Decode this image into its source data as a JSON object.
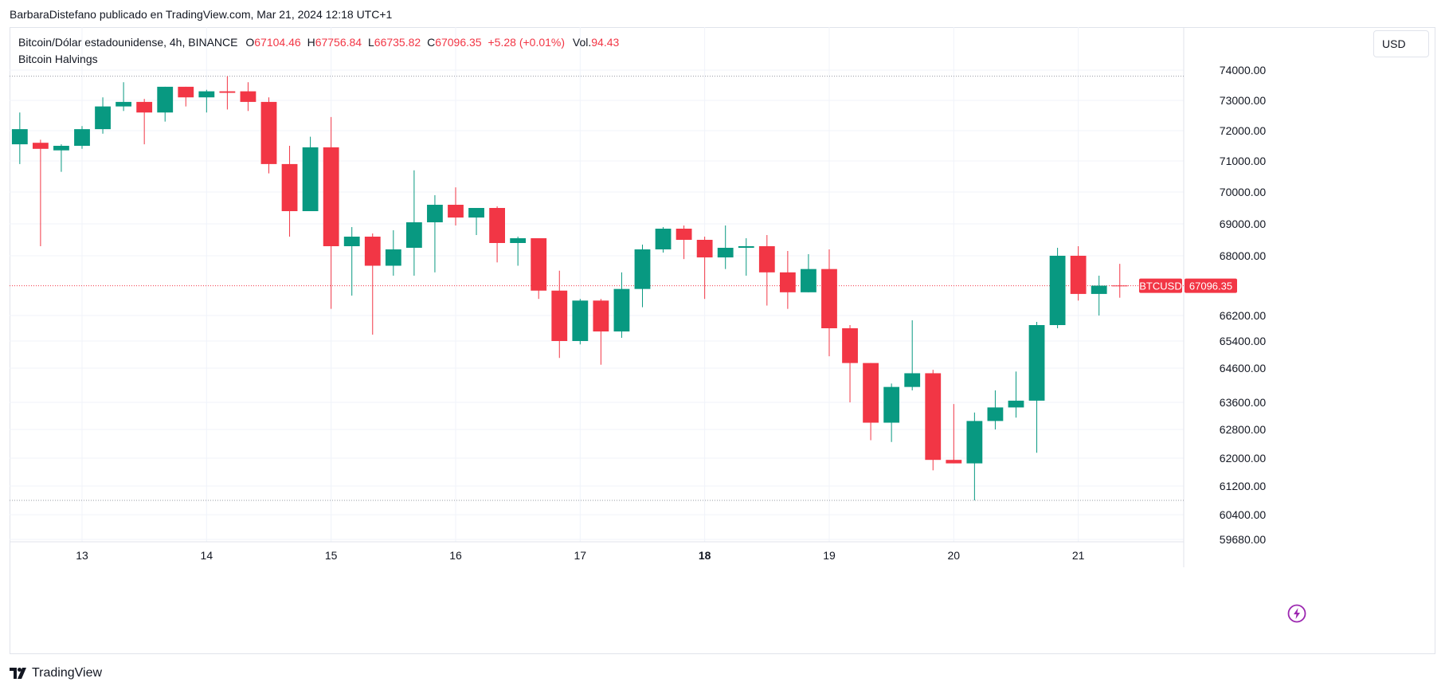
{
  "header": {
    "publisher_line": "BarbaraDistefano publicado en TradingView.com, Mar 21, 2024 12:18 UTC+1"
  },
  "legend": {
    "symbol": "Bitcoin/Dólar estadounidense, 4h, BINANCE",
    "o_label": "O",
    "o_value": "67104.46",
    "h_label": "H",
    "h_value": "67756.84",
    "l_label": "L",
    "l_value": "66735.82",
    "c_label": "C",
    "c_value": "67096.35",
    "change": "+5.28 (+0.01%)",
    "vol_label": "Vol.",
    "vol_value": "94.43",
    "indicator": "Bitcoin Halvings"
  },
  "currency_button": "USD",
  "branding": "TradingView",
  "colors": {
    "up": "#089981",
    "down": "#f23645",
    "grid": "#f0f3fa",
    "price_line": "#f23645",
    "dotted_line": "#9598a1",
    "flash_icon": "#9c27b0"
  },
  "icons": {
    "flash": "lightning-icon",
    "brand": "tradingview-logo-icon"
  },
  "chart_data": {
    "type": "candlestick",
    "symbol_tag": "BTCUSD",
    "last_price": 67096.35,
    "last_price_label": "67096.35",
    "y_ticks": [
      "74000.00",
      "73000.00",
      "72000.00",
      "71000.00",
      "70000.00",
      "69000.00",
      "68000.00",
      "66200.00",
      "65400.00",
      "64600.00",
      "63600.00",
      "62800.00",
      "62000.00",
      "61200.00",
      "60400.00",
      "59680.00"
    ],
    "y_tick_values": [
      74000,
      73000,
      72000,
      71000,
      70000,
      69000,
      68000,
      66200,
      65400,
      64600,
      63600,
      62800,
      62000,
      61200,
      60400,
      59680
    ],
    "x_ticks": [
      {
        "label": "13",
        "bold": false
      },
      {
        "label": "14",
        "bold": false
      },
      {
        "label": "15",
        "bold": false
      },
      {
        "label": "16",
        "bold": false
      },
      {
        "label": "17",
        "bold": false
      },
      {
        "label": "18",
        "bold": true
      },
      {
        "label": "19",
        "bold": false
      },
      {
        "label": "20",
        "bold": false
      },
      {
        "label": "21",
        "bold": false
      }
    ],
    "candles_per_day": 6,
    "first_candle_offset": -3,
    "high_marker": 73800,
    "low_marker": 60800,
    "candles": [
      {
        "o": 71550,
        "h": 72600,
        "l": 70900,
        "c": 72050
      },
      {
        "o": 71600,
        "h": 71700,
        "l": 68300,
        "c": 71400
      },
      {
        "o": 71350,
        "h": 71550,
        "l": 70650,
        "c": 71500
      },
      {
        "o": 71500,
        "h": 72150,
        "l": 71400,
        "c": 72050
      },
      {
        "o": 72050,
        "h": 73100,
        "l": 71900,
        "c": 72800
      },
      {
        "o": 72800,
        "h": 73600,
        "l": 72650,
        "c": 72950
      },
      {
        "o": 72950,
        "h": 73050,
        "l": 71550,
        "c": 72600
      },
      {
        "o": 72600,
        "h": 73450,
        "l": 72300,
        "c": 73450
      },
      {
        "o": 73450,
        "h": 73450,
        "l": 72800,
        "c": 73100
      },
      {
        "o": 73100,
        "h": 73350,
        "l": 72600,
        "c": 73300
      },
      {
        "o": 73300,
        "h": 73800,
        "l": 72700,
        "c": 73250
      },
      {
        "o": 73300,
        "h": 73600,
        "l": 72650,
        "c": 72950
      },
      {
        "o": 72950,
        "h": 73100,
        "l": 70600,
        "c": 70900
      },
      {
        "o": 70900,
        "h": 71500,
        "l": 68600,
        "c": 69400
      },
      {
        "o": 69400,
        "h": 71800,
        "l": 69400,
        "c": 71450
      },
      {
        "o": 71450,
        "h": 72450,
        "l": 66400,
        "c": 68300
      },
      {
        "o": 68300,
        "h": 68900,
        "l": 66800,
        "c": 68600
      },
      {
        "o": 68600,
        "h": 68700,
        "l": 65600,
        "c": 67700
      },
      {
        "o": 67700,
        "h": 68800,
        "l": 67400,
        "c": 68200
      },
      {
        "o": 68250,
        "h": 70700,
        "l": 67400,
        "c": 69050
      },
      {
        "o": 69050,
        "h": 69900,
        "l": 67500,
        "c": 69600
      },
      {
        "o": 69600,
        "h": 70150,
        "l": 68950,
        "c": 69200
      },
      {
        "o": 69200,
        "h": 69500,
        "l": 68650,
        "c": 69500
      },
      {
        "o": 69500,
        "h": 69550,
        "l": 67800,
        "c": 68400
      },
      {
        "o": 68400,
        "h": 68600,
        "l": 67700,
        "c": 68550
      },
      {
        "o": 68550,
        "h": 68550,
        "l": 66700,
        "c": 66950
      },
      {
        "o": 66950,
        "h": 67550,
        "l": 64900,
        "c": 65400
      },
      {
        "o": 65400,
        "h": 66700,
        "l": 65300,
        "c": 66650
      },
      {
        "o": 66650,
        "h": 66700,
        "l": 64700,
        "c": 65700
      },
      {
        "o": 65700,
        "h": 67500,
        "l": 65500,
        "c": 67000
      },
      {
        "o": 67000,
        "h": 68350,
        "l": 66450,
        "c": 68200
      },
      {
        "o": 68200,
        "h": 68900,
        "l": 68100,
        "c": 68850
      },
      {
        "o": 68850,
        "h": 68950,
        "l": 67900,
        "c": 68500
      },
      {
        "o": 68500,
        "h": 68600,
        "l": 66700,
        "c": 67950
      },
      {
        "o": 67950,
        "h": 68950,
        "l": 67600,
        "c": 68250
      },
      {
        "o": 68250,
        "h": 68550,
        "l": 67400,
        "c": 68300
      },
      {
        "o": 68300,
        "h": 68650,
        "l": 66500,
        "c": 67500
      },
      {
        "o": 67500,
        "h": 68150,
        "l": 66400,
        "c": 66900
      },
      {
        "o": 66900,
        "h": 68050,
        "l": 66900,
        "c": 67600
      },
      {
        "o": 67600,
        "h": 68200,
        "l": 64950,
        "c": 65800
      },
      {
        "o": 65800,
        "h": 65900,
        "l": 63600,
        "c": 64750
      },
      {
        "o": 64750,
        "h": 64750,
        "l": 62500,
        "c": 63000
      },
      {
        "o": 63000,
        "h": 64150,
        "l": 62450,
        "c": 64050
      },
      {
        "o": 64050,
        "h": 66050,
        "l": 63950,
        "c": 64450
      },
      {
        "o": 64450,
        "h": 64550,
        "l": 61650,
        "c": 61950
      },
      {
        "o": 61950,
        "h": 63550,
        "l": 61850,
        "c": 61850
      },
      {
        "o": 61850,
        "h": 63300,
        "l": 60800,
        "c": 63050
      },
      {
        "o": 63050,
        "h": 63950,
        "l": 62800,
        "c": 63450
      },
      {
        "o": 63450,
        "h": 64500,
        "l": 63150,
        "c": 63650
      },
      {
        "o": 63650,
        "h": 66000,
        "l": 62150,
        "c": 65900
      },
      {
        "o": 65900,
        "h": 68250,
        "l": 65800,
        "c": 68000
      },
      {
        "o": 68000,
        "h": 68300,
        "l": 66650,
        "c": 66850
      },
      {
        "o": 66850,
        "h": 67400,
        "l": 66200,
        "c": 67100
      },
      {
        "o": 67104.46,
        "h": 67756.84,
        "l": 66735.82,
        "c": 67096.35
      }
    ]
  }
}
